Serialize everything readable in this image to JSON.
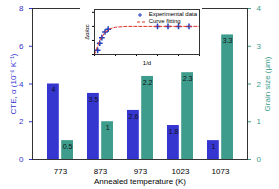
{
  "chart_data": [
    {
      "type": "bar",
      "categories": [
        773,
        873,
        973,
        1023,
        1073
      ],
      "x_label": "Annealed temperature (K)",
      "y_label": "CTE, α (10⁻⁶ K⁻¹)",
      "y2_label": "Grain size (μm)",
      "series": [
        {
          "color": "#3535d0",
          "values": [
            4,
            3.5,
            2.6,
            1.8,
            1
          ],
          "axis": "y"
        },
        {
          "color": "#3d9c8c",
          "values": [
            0.5,
            1,
            2.2,
            2.3,
            3.3
          ],
          "axis": "y2"
        }
      ],
      "ylim": [
        0,
        8
      ],
      "yticks": [
        0,
        2,
        4,
        6,
        8
      ],
      "y2lim": [
        0,
        4
      ],
      "y2ticks": [
        0,
        1,
        2,
        3,
        4
      ],
      "data_labels": true
    },
    {
      "type": "scatter",
      "x_label": "1/d",
      "y_label": "Δα/αc",
      "series": [
        {
          "name": "Experimental data",
          "type": "scatter",
          "marker": "plus",
          "color": "#1f3fbf",
          "x": [
            0.03,
            0.05,
            0.07,
            0.1,
            0.13,
            0.6,
            0.7,
            0.8,
            0.9
          ],
          "values": [
            0.15,
            0.4,
            0.6,
            0.8,
            0.9,
            1.0,
            1.0,
            1.0,
            1.0
          ]
        },
        {
          "name": "Curve fitting",
          "type": "line",
          "line_style": "dashed",
          "color": "#e0302a",
          "x": [
            0,
            0.02,
            0.05,
            0.1,
            0.15,
            0.2,
            0.3,
            0.5,
            0.7,
            0.9,
            1
          ],
          "values": [
            0,
            0.2,
            0.5,
            0.8,
            0.92,
            0.97,
            1.0,
            1.0,
            1.0,
            1.0,
            1.0
          ]
        }
      ],
      "xlim": [
        0,
        1
      ],
      "xticks": [
        0,
        0.2,
        0.4,
        0.6,
        0.8,
        1
      ],
      "ylim": [
        0,
        1.6
      ],
      "yticks": [
        0,
        0.5,
        1,
        1.5
      ],
      "tick_labels": false,
      "legend": "top-right"
    }
  ]
}
